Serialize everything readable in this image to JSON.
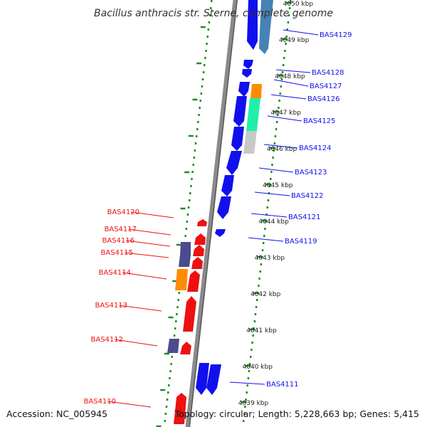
{
  "title": "Bacillus anthracis str. Sterne, complete genome",
  "accession": "Accession: NC_005945",
  "topology": "Topology: circular; Length: 5,228,663 bp; Genes: 5,415",
  "colors": {
    "forward": "#1010ee",
    "reverse": "#ee1111",
    "purple": "#4b4b8f",
    "orange": "#ff8c00",
    "aqua": "#22eeaa",
    "gray": "#c8c8c8",
    "steel": "#4682b4",
    "tick": "#228b22",
    "backbone": "#8a8a8a"
  },
  "kbp_labels": [
    "4050 kbp",
    "4049 kbp",
    "4048 kbp",
    "4047 kbp",
    "4046 kbp",
    "4045 kbp",
    "4044 kbp",
    "4043 kbp",
    "4042 kbp",
    "4041 kbp",
    "4040 kbp",
    "4039 kbp"
  ],
  "forward_genes": [
    "BAS4129",
    "BAS4128",
    "BAS4127",
    "BAS4126",
    "BAS4125",
    "BAS4124",
    "BAS4123",
    "BAS4122",
    "BAS4121",
    "BAS4119",
    "BAS4111"
  ],
  "reverse_genes": [
    "BAS4120",
    "BAS4117",
    "BAS4116",
    "BAS4115",
    "BAS4114",
    "BAS4113",
    "BAS4112",
    "BAS4110"
  ]
}
